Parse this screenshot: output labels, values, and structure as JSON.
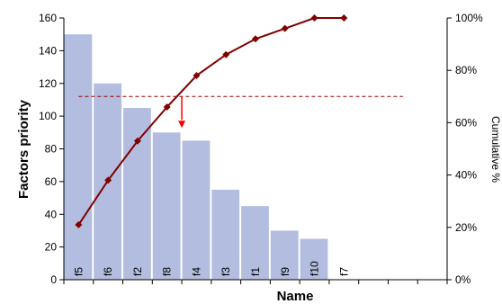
{
  "chart_data": {
    "type": "bar",
    "categories": [
      "f5",
      "f6",
      "f2",
      "f8",
      "f4",
      "f3",
      "f1",
      "f9",
      "f10",
      "f7"
    ],
    "series": [
      {
        "type": "bar",
        "axis": "left",
        "values": [
          150,
          120,
          105,
          90,
          85,
          55,
          45,
          30,
          25,
          0
        ],
        "color": "#b3bde0"
      },
      {
        "type": "line",
        "axis": "right",
        "values": [
          21,
          38,
          53,
          66,
          78,
          86,
          92,
          96,
          100,
          100
        ],
        "color": "#800000"
      }
    ],
    "xlabel": "Name",
    "ylabel": "Factors priority",
    "y2label": "Cumulative %",
    "ylim": [
      0,
      160
    ],
    "y2lim": [
      0,
      100
    ],
    "yticks": [
      "0",
      "20",
      "40",
      "60",
      "80",
      "100",
      "120",
      "140",
      "160"
    ],
    "y2ticks": [
      "0%",
      "20%",
      "40%",
      "60%",
      "80%",
      "100%"
    ],
    "threshold_percent": 70,
    "threshold_color": "#990000",
    "arrow_color": "#ff0000",
    "arrow_category": "f8",
    "empty_slots": 3,
    "grid": false,
    "legend": "none"
  }
}
